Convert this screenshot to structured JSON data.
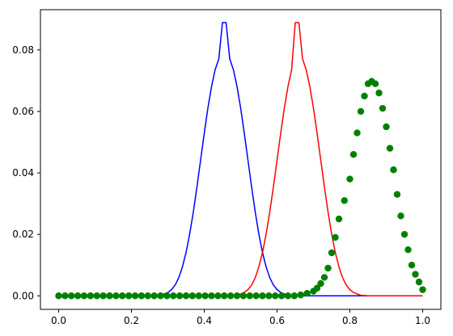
{
  "chart_data": {
    "type": "line",
    "title": "",
    "xlabel": "",
    "ylabel": "",
    "xlim": [
      -0.05,
      1.05
    ],
    "ylim": [
      -0.0044,
      0.0931
    ],
    "x_ticks": [
      0.0,
      0.2,
      0.4,
      0.6,
      0.8,
      1.0
    ],
    "x_tick_labels": [
      "0.0",
      "0.2",
      "0.4",
      "0.6",
      "0.8",
      "1.0"
    ],
    "y_ticks": [
      0.0,
      0.02,
      0.04,
      0.06,
      0.08
    ],
    "y_tick_labels": [
      "0.00",
      "0.02",
      "0.04",
      "0.06",
      "0.08"
    ],
    "grid": false,
    "legend": "none",
    "x": [
      0.0,
      0.01,
      0.02,
      0.03,
      0.04,
      0.05,
      0.06,
      0.07,
      0.08,
      0.09,
      0.1,
      0.11,
      0.12,
      0.13,
      0.14,
      0.15,
      0.16,
      0.17,
      0.18,
      0.19,
      0.2,
      0.21,
      0.22,
      0.23,
      0.24,
      0.25,
      0.26,
      0.27,
      0.28,
      0.29,
      0.3,
      0.31,
      0.32,
      0.33,
      0.34,
      0.35,
      0.36,
      0.37,
      0.38,
      0.39,
      0.4,
      0.41,
      0.42,
      0.43,
      0.44,
      0.45,
      0.46,
      0.47,
      0.48,
      0.49,
      0.5,
      0.51,
      0.52,
      0.53,
      0.54,
      0.55,
      0.56,
      0.57,
      0.58,
      0.59,
      0.6,
      0.61,
      0.62,
      0.63,
      0.64,
      0.65,
      0.66,
      0.67,
      0.68,
      0.69,
      0.7,
      0.71,
      0.72,
      0.73,
      0.74,
      0.75,
      0.76,
      0.77,
      0.78,
      0.79,
      0.8,
      0.81,
      0.82,
      0.83,
      0.84,
      0.85,
      0.86,
      0.87,
      0.88,
      0.89,
      0.9,
      0.91,
      0.92,
      0.93,
      0.94,
      0.95,
      0.96,
      0.97,
      0.98,
      0.99,
      1.0
    ],
    "series": [
      {
        "color": "#0000ff",
        "style": "line",
        "values": [
          0,
          0,
          0,
          0,
          0,
          0,
          0,
          0,
          0,
          0,
          0,
          0,
          0,
          0,
          0,
          0,
          0,
          0,
          0,
          0,
          0,
          0,
          0,
          0,
          0,
          0,
          0,
          0.0001,
          0.0002,
          0.0006,
          0.0011,
          0.002,
          0.0035,
          0.0059,
          0.0094,
          0.0141,
          0.0201,
          0.0273,
          0.0355,
          0.0442,
          0.0529,
          0.0611,
          0.0681,
          0.0736,
          0.0771,
          0.0889,
          0.0889,
          0.0771,
          0.0736,
          0.0681,
          0.0611,
          0.0529,
          0.0442,
          0.0355,
          0.0273,
          0.0201,
          0.0141,
          0.0094,
          0.0059,
          0.0035,
          0.002,
          0.0011,
          0.0006,
          0.0002,
          0.0001,
          0,
          0,
          0,
          0,
          0,
          0,
          0,
          0,
          0,
          0,
          0,
          0,
          0,
          0,
          0,
          0,
          0,
          0,
          0,
          0,
          0,
          0,
          0,
          0,
          0,
          0,
          0,
          0,
          0,
          0,
          0,
          0,
          0,
          0,
          0,
          0
        ]
      },
      {
        "color": "#ff0000",
        "style": "line",
        "values": [
          0,
          0,
          0,
          0,
          0,
          0,
          0,
          0,
          0,
          0,
          0,
          0,
          0,
          0,
          0,
          0,
          0,
          0,
          0,
          0,
          0,
          0,
          0,
          0,
          0,
          0,
          0,
          0,
          0,
          0,
          0,
          0,
          0,
          0,
          0,
          0,
          0,
          0,
          0,
          0,
          0,
          0,
          0,
          0,
          0,
          0,
          0,
          0,
          0.0001,
          0.0002,
          0.0006,
          0.0011,
          0.002,
          0.0035,
          0.0059,
          0.0094,
          0.0141,
          0.0201,
          0.0273,
          0.0355,
          0.0442,
          0.0529,
          0.0611,
          0.0681,
          0.0736,
          0.0889,
          0.0889,
          0.0771,
          0.0736,
          0.0681,
          0.0611,
          0.0529,
          0.0442,
          0.0355,
          0.0273,
          0.0201,
          0.0141,
          0.0094,
          0.0059,
          0.0035,
          0.002,
          0.0011,
          0.0006,
          0.0002,
          0.0001,
          0,
          0,
          0,
          0,
          0,
          0,
          0,
          0,
          0,
          0,
          0,
          0,
          0,
          0,
          0,
          0
        ]
      },
      {
        "color": "#008000",
        "style": "markers",
        "x": [
          0.0,
          0.0175,
          0.035,
          0.0525,
          0.07,
          0.0875,
          0.105,
          0.1225,
          0.14,
          0.1575,
          0.175,
          0.1925,
          0.21,
          0.2275,
          0.245,
          0.2625,
          0.28,
          0.2975,
          0.315,
          0.3325,
          0.35,
          0.3675,
          0.385,
          0.4025,
          0.42,
          0.4375,
          0.455,
          0.4725,
          0.49,
          0.5075,
          0.525,
          0.5425,
          0.56,
          0.5775,
          0.595,
          0.6125,
          0.63,
          0.6475,
          0.665,
          0.6825,
          0.7,
          0.71,
          0.72,
          0.73,
          0.74,
          0.75,
          0.76,
          0.77,
          0.785,
          0.8,
          0.81,
          0.82,
          0.83,
          0.84,
          0.85,
          0.86,
          0.87,
          0.88,
          0.89,
          0.9,
          0.91,
          0.92,
          0.93,
          0.94,
          0.95,
          0.96,
          0.97,
          0.98,
          0.99,
          1.0
        ],
        "values": [
          0,
          0,
          0,
          0,
          0,
          0,
          0,
          0,
          0,
          0,
          0,
          0,
          0,
          0,
          0,
          0,
          0,
          0,
          0,
          0,
          0,
          0,
          0,
          0,
          0,
          0,
          0,
          0,
          0,
          0,
          0,
          0,
          0,
          0,
          0,
          0,
          0,
          0,
          0.0003,
          0.0008,
          0.0015,
          0.0025,
          0.004,
          0.006,
          0.009,
          0.014,
          0.019,
          0.025,
          0.031,
          0.038,
          0.046,
          0.053,
          0.06,
          0.065,
          0.069,
          0.0698,
          0.069,
          0.066,
          0.061,
          0.055,
          0.048,
          0.041,
          0.033,
          0.026,
          0.02,
          0.015,
          0.01,
          0.007,
          0.0045,
          0.002
        ]
      }
    ]
  }
}
